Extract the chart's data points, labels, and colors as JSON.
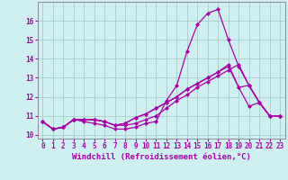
{
  "xlabel": "Windchill (Refroidissement éolien,°C)",
  "background_color": "#cff0f0",
  "grid_color": "#aacccc",
  "line_color": "#aa00aa",
  "xlim": [
    -0.5,
    23.5
  ],
  "ylim": [
    9.8,
    17.0
  ],
  "yticks": [
    10,
    11,
    12,
    13,
    14,
    15,
    16
  ],
  "xticks": [
    0,
    1,
    2,
    3,
    4,
    5,
    6,
    7,
    8,
    9,
    10,
    11,
    12,
    13,
    14,
    15,
    16,
    17,
    18,
    19,
    20,
    21,
    22,
    23
  ],
  "series": [
    [
      10.7,
      10.3,
      10.4,
      10.8,
      10.7,
      10.6,
      10.5,
      10.3,
      10.3,
      10.4,
      10.6,
      10.7,
      11.8,
      12.6,
      14.4,
      15.8,
      16.4,
      16.6,
      15.0,
      13.6,
      12.6,
      11.7,
      11.0,
      11.0
    ],
    [
      10.7,
      10.3,
      10.4,
      10.8,
      10.8,
      10.8,
      10.7,
      10.5,
      10.5,
      10.6,
      10.8,
      11.0,
      11.4,
      11.8,
      12.1,
      12.5,
      12.8,
      13.1,
      13.4,
      13.7,
      12.6,
      11.7,
      11.0,
      11.0
    ],
    [
      10.7,
      10.3,
      10.4,
      10.8,
      10.8,
      10.8,
      10.7,
      10.5,
      10.6,
      10.9,
      11.1,
      11.4,
      11.7,
      12.0,
      12.4,
      12.7,
      13.0,
      13.3,
      13.7,
      12.5,
      12.6,
      11.7,
      11.0,
      11.0
    ],
    [
      10.7,
      10.3,
      10.4,
      10.8,
      10.8,
      10.8,
      10.7,
      10.5,
      10.6,
      10.9,
      11.1,
      11.4,
      11.7,
      12.0,
      12.4,
      12.7,
      13.0,
      13.3,
      13.6,
      12.5,
      11.5,
      11.7,
      11.0,
      11.0
    ]
  ],
  "marker": "D",
  "markersize": 2.0,
  "linewidth": 0.9,
  "tick_fontsize": 5.5,
  "xlabel_fontsize": 6.5,
  "spine_color": "#888899"
}
